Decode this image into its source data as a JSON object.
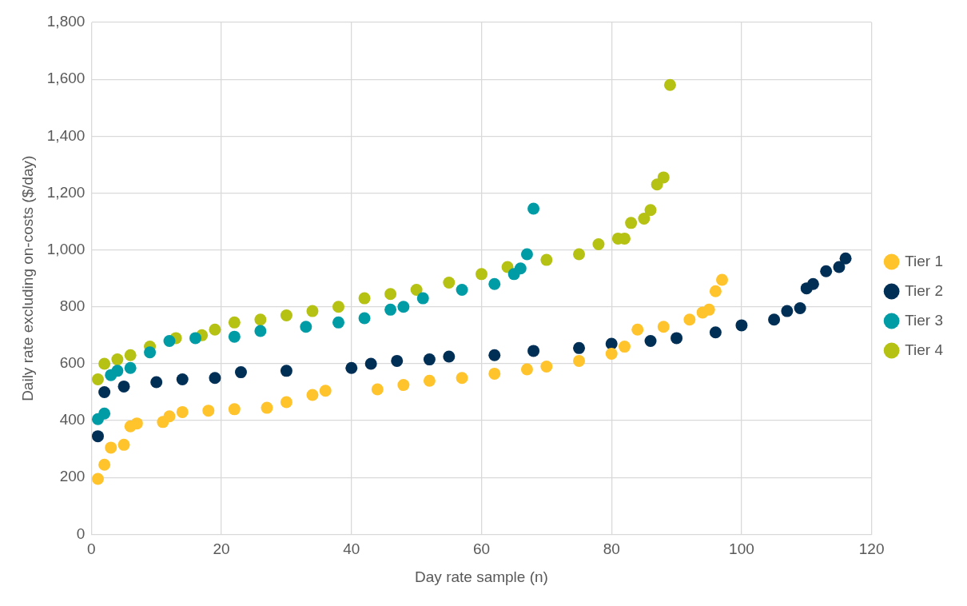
{
  "chart_data": {
    "type": "scatter",
    "xlabel": "Day rate sample (n)",
    "ylabel": "Daily rate excluding on-costs ($/day)",
    "xlim": [
      0,
      120
    ],
    "xticks": [
      0,
      20,
      40,
      60,
      80,
      100,
      120
    ],
    "ylim": [
      0,
      1800
    ],
    "yticks": [
      0,
      200,
      400,
      600,
      800,
      {
        "value": 1000,
        "label": "1,000"
      },
      {
        "value": 1200,
        "label": "1,200"
      },
      {
        "value": 1400,
        "label": "1,400"
      },
      {
        "value": 1600,
        "label": "1,600"
      },
      {
        "value": 1800,
        "label": "1,800"
      }
    ],
    "grid": true,
    "legend": "right",
    "marker": "circle",
    "series": [
      {
        "name": "Tier 1",
        "color": "#ffc32c",
        "x": [
          1,
          2,
          3,
          5,
          6,
          7,
          11,
          12,
          14,
          18,
          22,
          27,
          30,
          34,
          36,
          44,
          48,
          52,
          57,
          62,
          67,
          70,
          75,
          80,
          82,
          84,
          88,
          92,
          94,
          95,
          96,
          97
        ],
        "values": [
          195,
          245,
          305,
          315,
          380,
          390,
          395,
          415,
          430,
          435,
          440,
          445,
          465,
          490,
          505,
          510,
          525,
          540,
          550,
          565,
          580,
          590,
          610,
          635,
          660,
          720,
          730,
          755,
          780,
          790,
          855,
          895
        ]
      },
      {
        "name": "Tier 2",
        "color": "#002f56",
        "x": [
          1,
          2,
          5,
          10,
          14,
          19,
          23,
          30,
          40,
          43,
          47,
          52,
          55,
          62,
          68,
          75,
          80,
          86,
          90,
          96,
          100,
          105,
          107,
          109,
          110,
          111,
          113,
          115,
          116
        ],
        "values": [
          345,
          500,
          520,
          535,
          545,
          550,
          570,
          575,
          585,
          600,
          610,
          615,
          625,
          630,
          645,
          655,
          670,
          680,
          690,
          710,
          735,
          755,
          785,
          795,
          865,
          880,
          925,
          940,
          970
        ]
      },
      {
        "name": "Tier 3",
        "color": "#009ca6",
        "x": [
          1,
          2,
          3,
          4,
          6,
          9,
          12,
          16,
          22,
          26,
          33,
          38,
          42,
          46,
          48,
          51,
          57,
          62,
          65,
          66,
          67,
          68
        ],
        "values": [
          405,
          425,
          560,
          575,
          585,
          640,
          680,
          690,
          695,
          715,
          730,
          745,
          760,
          790,
          800,
          830,
          860,
          880,
          915,
          935,
          985,
          1145
        ]
      },
      {
        "name": "Tier 4",
        "color": "#b5c113",
        "x": [
          1,
          2,
          4,
          6,
          9,
          13,
          17,
          19,
          22,
          26,
          30,
          34,
          38,
          42,
          46,
          50,
          55,
          60,
          64,
          70,
          75,
          78,
          81,
          82,
          83,
          85,
          86,
          87,
          88,
          89
        ],
        "values": [
          545,
          600,
          615,
          630,
          660,
          690,
          700,
          720,
          745,
          755,
          770,
          785,
          800,
          830,
          845,
          860,
          885,
          915,
          940,
          965,
          985,
          1020,
          1040,
          1040,
          1095,
          1110,
          1140,
          1230,
          1255,
          1580
        ]
      }
    ]
  }
}
